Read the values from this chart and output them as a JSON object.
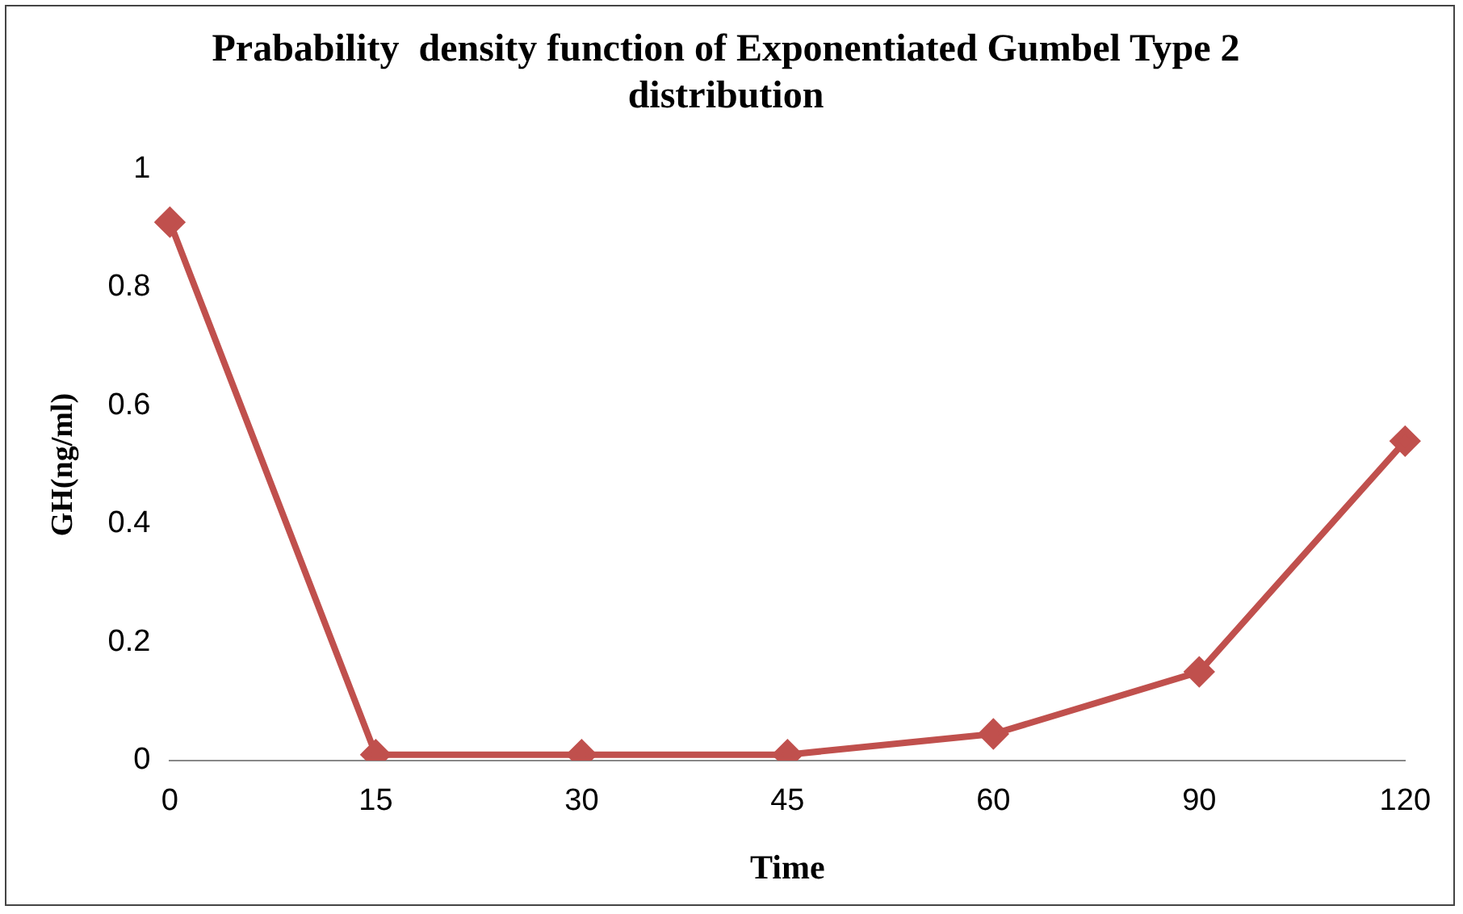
{
  "chart_data": {
    "type": "line",
    "title": "Prabability  density function of Exponentiated Gumbel Type 2 distribution",
    "xlabel": "Time",
    "ylabel": "GH(ng/ml)",
    "categories": [
      "0",
      "15",
      "30",
      "45",
      "60",
      "90",
      "120"
    ],
    "series": [
      {
        "color": "#c0504d",
        "values": [
          0.91,
          0.01,
          0.01,
          0.01,
          0.045,
          0.15,
          0.54
        ]
      }
    ],
    "ylim": [
      0,
      1
    ],
    "yticks": [
      0,
      0.2,
      0.4,
      0.6,
      0.8,
      1
    ],
    "grid": false,
    "legend": false,
    "marker": "diamond",
    "line_style": "solid"
  }
}
